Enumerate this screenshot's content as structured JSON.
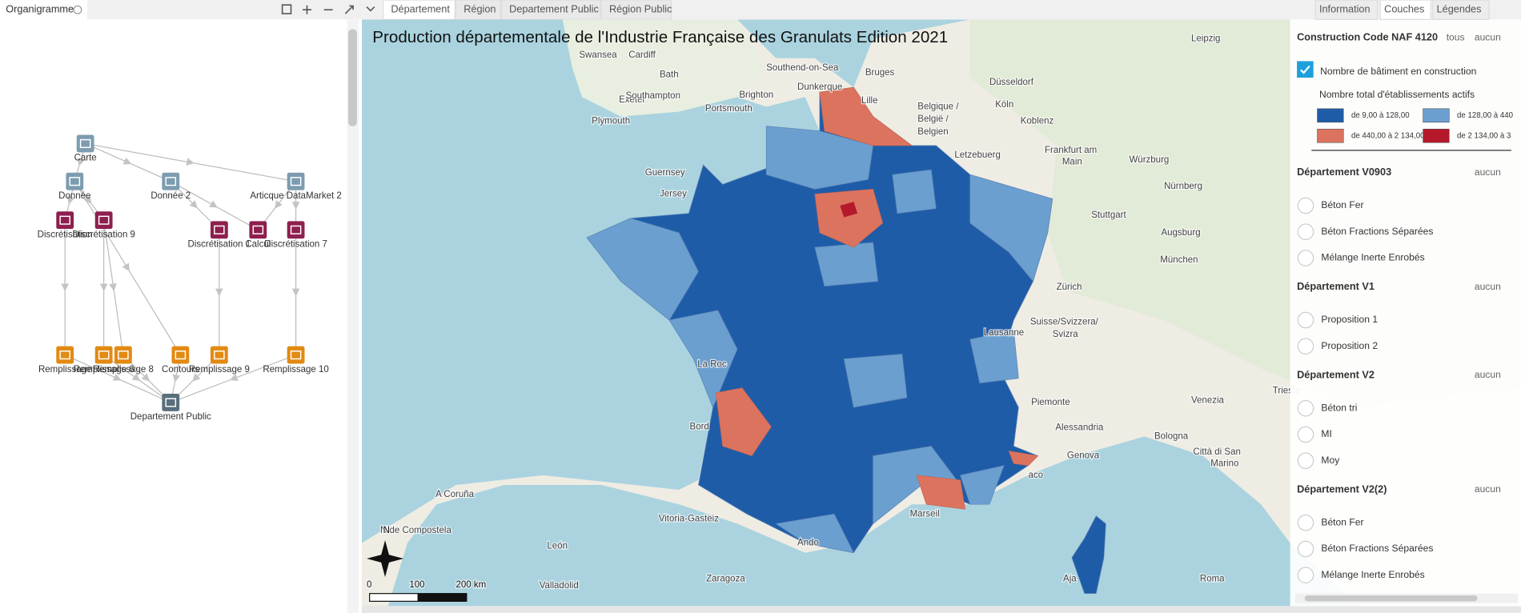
{
  "left_panel": {
    "title": "Organigramme",
    "nodes": [
      {
        "label": "Carte"
      },
      {
        "label": "Donnée"
      },
      {
        "label": "Donnée 2"
      },
      {
        "label": "Articque DataMarket 2"
      },
      {
        "label": "Discrétisation"
      },
      {
        "label": "Discrétisation 9"
      },
      {
        "label": "Discrétisation 1"
      },
      {
        "label": "Calcul"
      },
      {
        "label": "Discrétisation 7"
      },
      {
        "label": "Remplissage"
      },
      {
        "label": "Remplissage 6"
      },
      {
        "label": "Remplissage 8"
      },
      {
        "label": "Contours"
      },
      {
        "label": "Remplissage 9"
      },
      {
        "label": "Remplissage 10"
      },
      {
        "label": "Departement Public"
      }
    ]
  },
  "tabs": [
    "Département",
    "Région",
    "Departement Public",
    "Région Public"
  ],
  "right_tabs": [
    "Information",
    "Couches",
    "Légendes"
  ],
  "map": {
    "title": "Production départementale de l'Industrie Française des Granulats Edition 2021",
    "place_labels": [
      "Swansea",
      "Cardiff",
      "Bath",
      "Exeter",
      "Southampton",
      "Brighton",
      "Portsmouth",
      "Plymouth",
      "Southend-on-Sea",
      "Guernsey",
      "Jersey",
      "Bruges",
      "Dunkerque",
      "Lille",
      "Belgique /",
      "België /",
      "Belgien",
      "Düsseldorf",
      "Köln",
      "Koblenz",
      "Letzebuerg",
      "Frankfurt am",
      "Main",
      "Würzburg",
      "Nürnberg",
      "Leipzig",
      "Stuttgart",
      "Augsburg",
      "München",
      "Zürich",
      "Suisse/Svizzera/",
      "Svizra",
      "Lausanne",
      "La Roc",
      "Bord",
      "Piemonte",
      "Alessandria",
      "Genova",
      "Venezia",
      "Trieste",
      "Bologna",
      "Città di San",
      "Marino",
      "Marseil",
      "aco",
      "A Coruña",
      "N de Compostela",
      "Vitoria-Gasteiz",
      "León",
      "Zaragoza",
      "Valladolid",
      "Ando",
      "Aja",
      "Roma"
    ],
    "compass": "N",
    "scale_labels": [
      "0",
      "100",
      "200 km"
    ]
  },
  "layers": {
    "title": "Construction Code NAF 4120",
    "all": "tous",
    "none": "aucun",
    "layer": "Nombre de bâtiment en construction",
    "legend_title": "Nombre total d'établissements actifs",
    "classes": [
      {
        "label": "de 9,00 à 128,00",
        "color": "#1f5ca8"
      },
      {
        "label": "de 128,00 à 440",
        "color": "#6b9fcf"
      },
      {
        "label": "de 440,00 à 2 134,00",
        "color": "#dc735f"
      },
      {
        "label": "de 2 134,00 à 3",
        "color": "#b5192b"
      }
    ],
    "groups": [
      {
        "title": "Département V0903",
        "none": "aucun",
        "items": [
          "Béton Fer",
          "Béton Fractions Séparées",
          "Mélange Inerte Enrobés"
        ]
      },
      {
        "title": "Département V1",
        "none": "aucun",
        "items": [
          "Proposition 1",
          "Proposition 2"
        ]
      },
      {
        "title": "Département V2",
        "none": "aucun",
        "items": [
          "Béton tri",
          "MI",
          "Moy"
        ]
      },
      {
        "title": "Département V2(2)",
        "none": "aucun",
        "items": [
          "Béton Fer",
          "Béton Fractions Séparées",
          "Mélange Inerte Enrobés"
        ]
      }
    ]
  }
}
